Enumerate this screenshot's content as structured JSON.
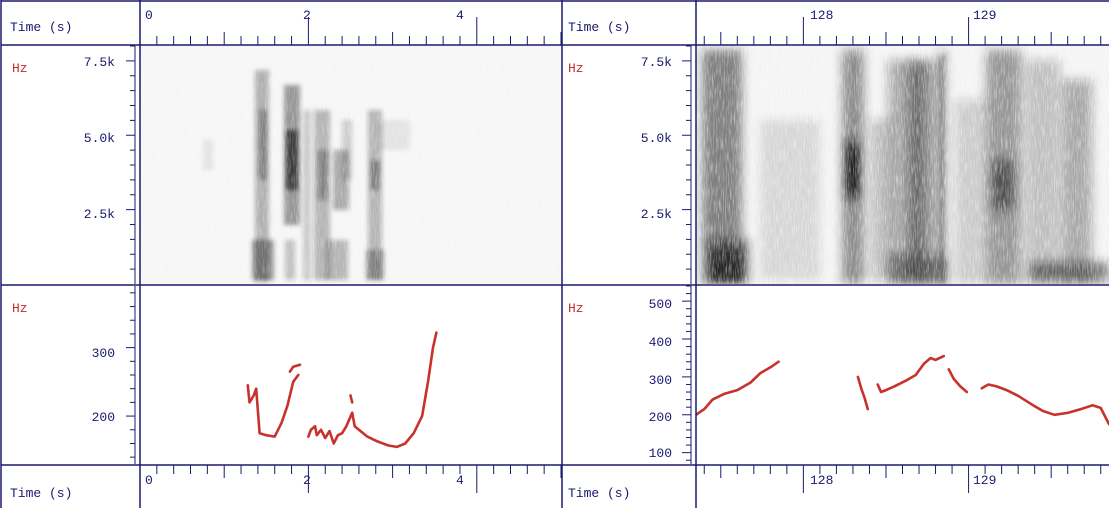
{
  "panels": [
    {
      "id": "left",
      "time_label": "Time (s)",
      "time_ticks": [
        "0",
        "2",
        "4"
      ],
      "spec_hz_label": "Hz",
      "spec_ticks": [
        "7.5k",
        "5.0k",
        "2.5k"
      ],
      "pitch_hz_label": "Hz",
      "pitch_ticks": [
        "300",
        "200"
      ]
    },
    {
      "id": "right",
      "time_label": "Time (s)",
      "time_ticks": [
        "128",
        "129"
      ],
      "spec_hz_label": "Hz",
      "spec_ticks": [
        "7.5k",
        "5.0k",
        "2.5k"
      ],
      "pitch_hz_label": "Hz",
      "pitch_ticks": [
        "500",
        "400",
        "300",
        "200",
        "100"
      ]
    }
  ],
  "colors": {
    "axis": "#1a1a6e",
    "hz_label": "#c0302a",
    "pitch_line": "#c8322c",
    "spectrogram_dark": "#202020"
  },
  "chart_data": [
    {
      "type": "line",
      "name": "left-pitch-track",
      "xlabel": "Time (s)",
      "ylabel": "Hz",
      "xlim": [
        0,
        5
      ],
      "ylim": [
        130,
        390
      ],
      "x_ticks": [
        0,
        2,
        4
      ],
      "y_ticks": [
        200,
        300
      ],
      "segments": [
        [
          [
            1.28,
            245
          ],
          [
            1.3,
            220
          ],
          [
            1.35,
            230
          ],
          [
            1.38,
            240
          ],
          [
            1.42,
            175
          ],
          [
            1.5,
            172
          ],
          [
            1.6,
            170
          ],
          [
            1.68,
            190
          ],
          [
            1.75,
            215
          ],
          [
            1.82,
            250
          ],
          [
            1.88,
            260
          ]
        ],
        [
          [
            1.78,
            265
          ],
          [
            1.82,
            272
          ],
          [
            1.9,
            275
          ]
        ],
        [
          [
            2.0,
            170
          ],
          [
            2.03,
            180
          ],
          [
            2.08,
            185
          ],
          [
            2.1,
            172
          ],
          [
            2.15,
            180
          ],
          [
            2.2,
            168
          ],
          [
            2.25,
            178
          ],
          [
            2.3,
            160
          ],
          [
            2.35,
            172
          ],
          [
            2.4,
            175
          ],
          [
            2.45,
            185
          ],
          [
            2.52,
            205
          ],
          [
            2.55,
            185
          ],
          [
            2.6,
            180
          ],
          [
            2.7,
            170
          ],
          [
            2.82,
            163
          ],
          [
            2.95,
            157
          ],
          [
            3.05,
            155
          ],
          [
            3.15,
            160
          ],
          [
            3.25,
            175
          ],
          [
            3.35,
            200
          ],
          [
            3.42,
            250
          ],
          [
            3.48,
            300
          ],
          [
            3.52,
            322
          ]
        ],
        [
          [
            2.5,
            230
          ],
          [
            2.52,
            220
          ]
        ]
      ]
    },
    {
      "type": "line",
      "name": "right-pitch-track",
      "xlabel": "Time (s)",
      "ylabel": "Hz",
      "xlim": [
        127.35,
        129.85
      ],
      "ylim": [
        70,
        540
      ],
      "x_ticks": [
        128,
        129
      ],
      "y_ticks": [
        100,
        200,
        300,
        400,
        500
      ],
      "segments": [
        [
          [
            127.35,
            200
          ],
          [
            127.4,
            215
          ],
          [
            127.45,
            240
          ],
          [
            127.52,
            255
          ],
          [
            127.6,
            265
          ],
          [
            127.68,
            285
          ],
          [
            127.74,
            310
          ],
          [
            127.8,
            325
          ],
          [
            127.85,
            340
          ]
        ],
        [
          [
            128.33,
            300
          ],
          [
            128.35,
            270
          ],
          [
            128.37,
            245
          ],
          [
            128.39,
            215
          ]
        ],
        [
          [
            128.45,
            280
          ],
          [
            128.47,
            260
          ],
          [
            128.5,
            265
          ],
          [
            128.55,
            275
          ],
          [
            128.62,
            290
          ],
          [
            128.68,
            305
          ],
          [
            128.73,
            335
          ],
          [
            128.77,
            350
          ],
          [
            128.8,
            345
          ],
          [
            128.85,
            355
          ]
        ],
        [
          [
            128.88,
            320
          ],
          [
            128.91,
            295
          ],
          [
            128.95,
            275
          ],
          [
            128.99,
            260
          ]
        ],
        [
          [
            129.08,
            270
          ],
          [
            129.12,
            280
          ],
          [
            129.17,
            275
          ],
          [
            129.23,
            265
          ],
          [
            129.3,
            250
          ],
          [
            129.38,
            228
          ],
          [
            129.45,
            210
          ],
          [
            129.52,
            200
          ],
          [
            129.6,
            205
          ],
          [
            129.68,
            215
          ],
          [
            129.75,
            225
          ],
          [
            129.8,
            218
          ],
          [
            129.85,
            175
          ]
        ]
      ]
    }
  ]
}
